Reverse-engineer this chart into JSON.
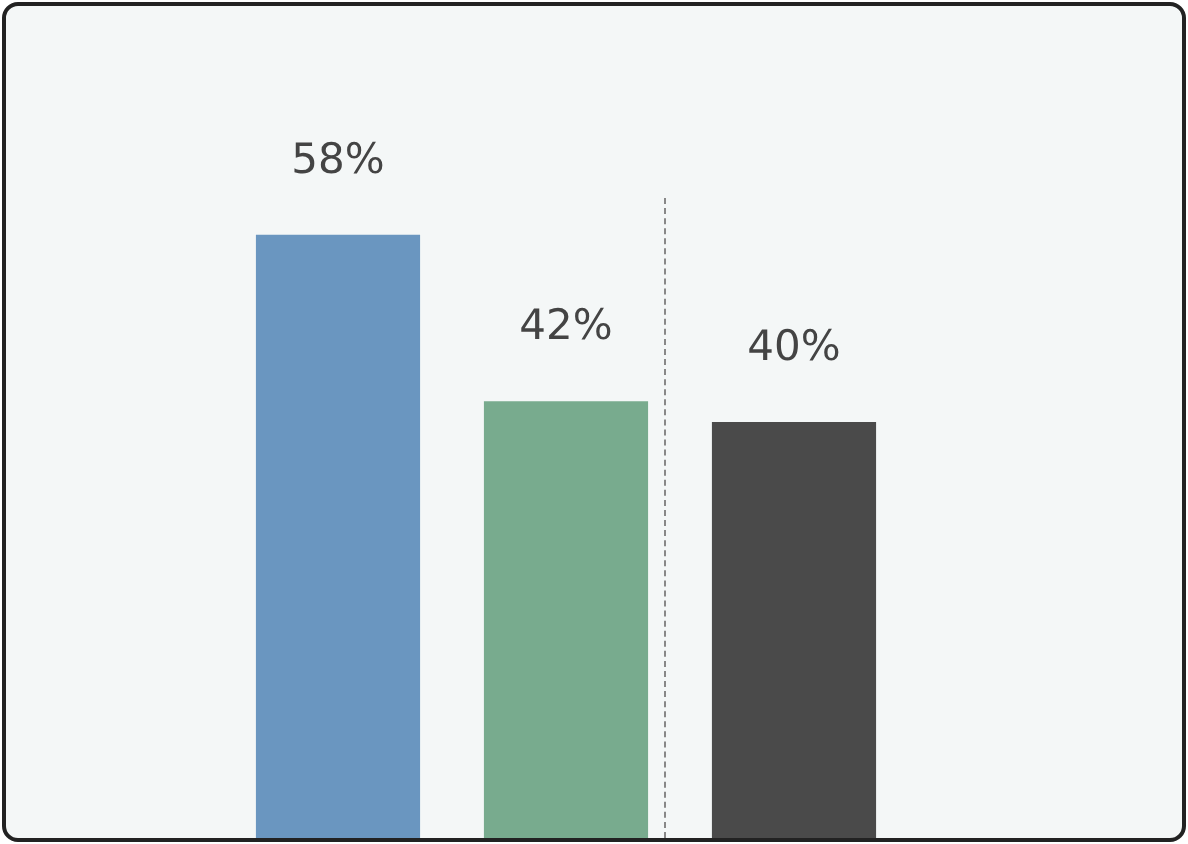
{
  "chart_data": {
    "type": "bar",
    "categories": [
      null,
      null,
      null
    ],
    "values": [
      58,
      42,
      40
    ],
    "colors": [
      "#6a96c0",
      "#78ab8e",
      "#4a4a4a"
    ],
    "ylim": [
      0,
      80
    ],
    "tick_labels": false,
    "legend": false,
    "data_labels": true,
    "value_labels": [
      "58%",
      "42%",
      "40%"
    ]
  }
}
